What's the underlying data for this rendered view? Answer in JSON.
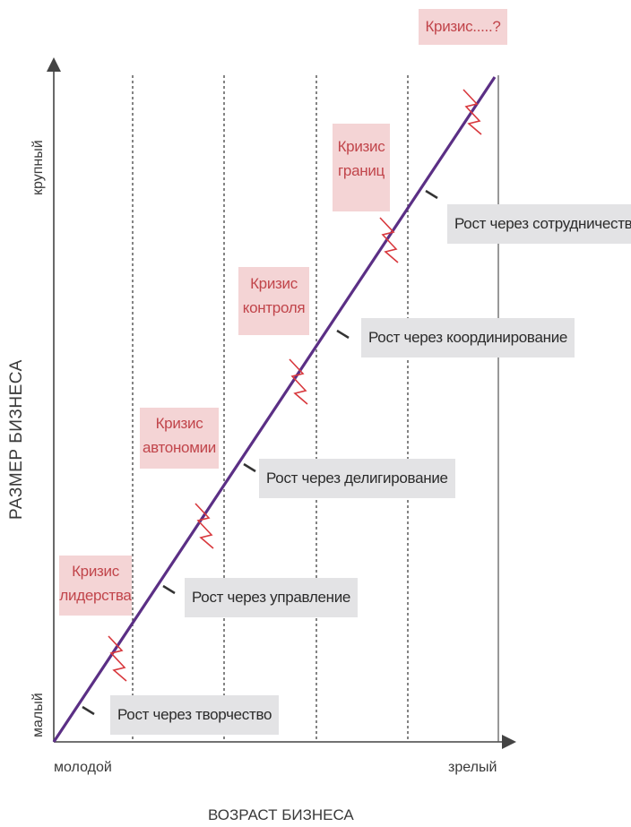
{
  "axes": {
    "x_title": "ВОЗРАСТ БИЗНЕСА",
    "y_title": "РАЗМЕР БИЗНЕСА",
    "x_start": "молодой",
    "x_end": "зрелый",
    "y_start": "малый",
    "y_end": "крупный"
  },
  "growth_phases": [
    {
      "label": "Рост через творчество"
    },
    {
      "label": "Рост через управление"
    },
    {
      "label": "Рост через делигирование"
    },
    {
      "label": "Рост через координирование"
    },
    {
      "label": "Рост через сотрудничество"
    }
  ],
  "crises": [
    {
      "line1": "Кризис",
      "line2": "лидерства"
    },
    {
      "line1": "Кризис",
      "line2": "автономии"
    },
    {
      "line1": "Кризис",
      "line2": "контроля"
    },
    {
      "line1": "Кризис",
      "line2": "границ"
    },
    {
      "line1": "Кризис.....?",
      "line2": ""
    }
  ],
  "colors": {
    "trend_line": "#5b2f85",
    "crisis_zigzag": "#d8383d",
    "crisis_box_bg": "#f4d4d5",
    "crisis_text": "#c1454b",
    "growth_box_bg": "#e3e3e5",
    "axis": "#444444"
  }
}
